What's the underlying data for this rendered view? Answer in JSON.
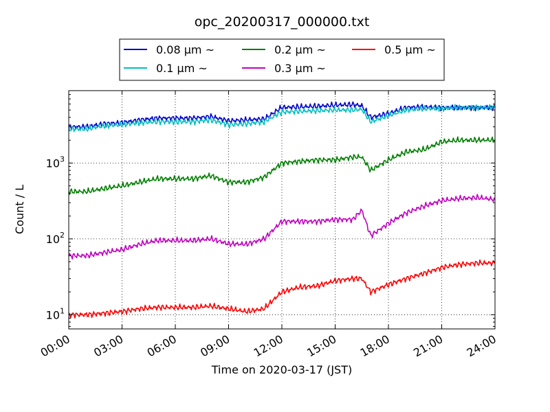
{
  "chart_data": {
    "type": "line",
    "title": "opc_20200317_000000.txt",
    "xlabel": "Time on 2020-03-17 (JST)",
    "ylabel": "Count / L",
    "yscale": "log",
    "xlim": [
      "00:00",
      "24:00"
    ],
    "ylim": [
      6.5,
      9000
    ],
    "grid": true,
    "legend_position": "top-center",
    "x_ticks": [
      "00:00",
      "03:00",
      "06:00",
      "09:00",
      "12:00",
      "15:00",
      "18:00",
      "21:00",
      "24:00"
    ],
    "y_ticks": [
      10,
      100,
      1000
    ],
    "x": [
      "00:00",
      "01:00",
      "02:00",
      "03:00",
      "04:00",
      "05:00",
      "06:00",
      "07:00",
      "08:00",
      "09:00",
      "10:00",
      "11:00",
      "12:00",
      "13:00",
      "14:00",
      "15:00",
      "16:00",
      "16:30",
      "17:00",
      "18:00",
      "19:00",
      "20:00",
      "21:00",
      "22:00",
      "23:00",
      "24:00"
    ],
    "series": [
      {
        "name": "0.08 μm ~",
        "color": "#0000cc",
        "values": [
          3000,
          3000,
          3300,
          3400,
          3700,
          3900,
          3900,
          3900,
          4100,
          3600,
          3700,
          3800,
          5400,
          5500,
          5600,
          5800,
          5900,
          5700,
          4000,
          4500,
          5400,
          5500,
          5400,
          5400,
          5400,
          5400
        ]
      },
      {
        "name": "0.1 μm ~",
        "color": "#00bfbf",
        "values": [
          2800,
          2800,
          3100,
          3200,
          3400,
          3500,
          3500,
          3500,
          3700,
          3200,
          3300,
          3500,
          4700,
          4800,
          4900,
          5000,
          5000,
          5100,
          3500,
          4200,
          5000,
          5200,
          5200,
          5400,
          5400,
          5400
        ]
      },
      {
        "name": "0.2 μm ~",
        "color": "#007f00",
        "values": [
          420,
          420,
          460,
          500,
          560,
          620,
          620,
          620,
          680,
          560,
          560,
          650,
          1000,
          1050,
          1100,
          1100,
          1200,
          1200,
          800,
          1100,
          1400,
          1500,
          1900,
          2000,
          2000,
          2000
        ]
      },
      {
        "name": "0.3 μm ~",
        "color": "#bf00bf",
        "values": [
          60,
          60,
          66,
          72,
          85,
          95,
          95,
          95,
          100,
          86,
          85,
          100,
          170,
          170,
          170,
          180,
          180,
          240,
          110,
          160,
          220,
          270,
          320,
          340,
          350,
          330
        ]
      },
      {
        "name": "0.5 μm ~",
        "color": "#ff0000",
        "values": [
          10,
          10,
          10.5,
          11,
          12,
          12.5,
          12.5,
          12.5,
          13,
          12,
          11,
          12,
          20,
          23,
          24,
          28,
          30,
          30,
          20,
          25,
          30,
          35,
          42,
          46,
          48,
          48
        ]
      }
    ]
  }
}
